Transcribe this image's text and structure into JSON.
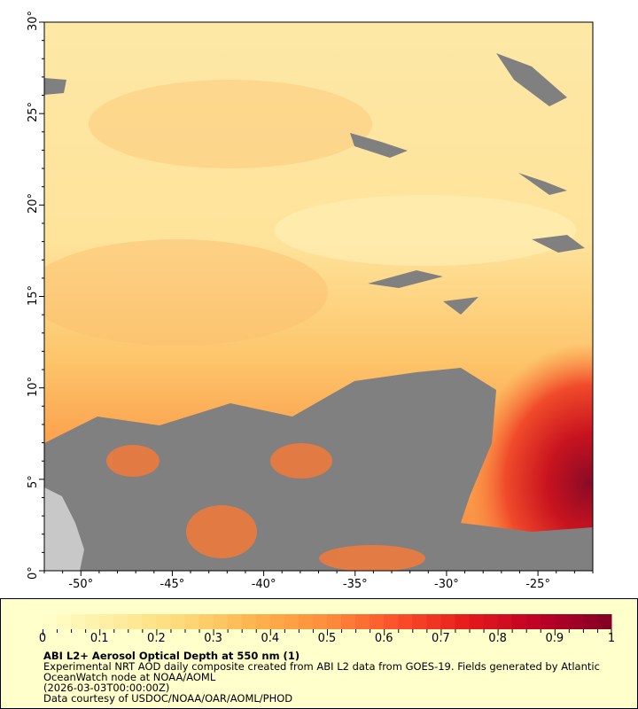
{
  "map": {
    "lon_range": [
      -52,
      -22
    ],
    "lat_range": [
      0,
      30
    ],
    "x_ticks": [
      "-50°",
      "-45°",
      "-40°",
      "-35°",
      "-30°",
      "-25°"
    ],
    "x_tick_values": [
      -50,
      -45,
      -40,
      -35,
      -30,
      -25
    ],
    "y_ticks": [
      "0°",
      "5°",
      "10°",
      "15°",
      "20°",
      "25°",
      "30°"
    ],
    "y_tick_values": [
      0,
      5,
      10,
      15,
      20,
      25,
      30
    ],
    "colors": {
      "land": "#c8c8c8",
      "no_data": "#808080",
      "low": "#ffe9a0",
      "high": "#800026"
    }
  },
  "legend": {
    "colorbar_ticks": [
      "0",
      "0.1",
      "0.2",
      "0.3",
      "0.4",
      "0.5",
      "0.6",
      "0.7",
      "0.8",
      "0.9",
      "1"
    ],
    "colorbar_range": [
      0,
      1
    ],
    "colormap": [
      "#ffffcc",
      "#ffeda0",
      "#fed976",
      "#feb24c",
      "#fd8d3c",
      "#fc4e2a",
      "#e31a1c",
      "#bd0026",
      "#800026"
    ],
    "title": "ABI L2+ Aerosol Optical Depth at 550 nm (1)",
    "description_line1": "Experimental NRT AOD daily composite created from ABI L2 data from GOES-19. Fields generated by Atlantic",
    "description_line2": "OceanWatch node at NOAA/AOML",
    "time": "(2026-03-03T00:00:00Z)",
    "credit": "Data courtesy of USDOC/NOAA/OAR/AOML/PHOD"
  }
}
